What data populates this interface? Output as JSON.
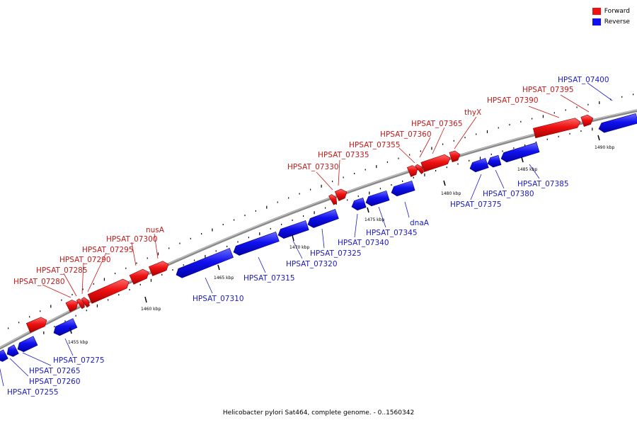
{
  "legend": {
    "forward_label": "Forward",
    "reverse_label": "Reverse",
    "forward_color": "#ee1111",
    "reverse_color": "#1111ee"
  },
  "caption": "Helicobacter pylori Sat464, complete genome. - 0..1560342",
  "ticks": [
    "1455 kbp",
    "1460 kbp",
    "1465 kbp",
    "1470 kbp",
    "1475 kbp",
    "1480 kbp",
    "1485 kbp",
    "1490 kbp"
  ],
  "forward_labels": [
    "HPSAT_07280",
    "HPSAT_07285",
    "HPSAT_07290",
    "HPSAT_07295",
    "HPSAT_07300",
    "nusA",
    "HPSAT_07330",
    "HPSAT_07335",
    "HPSAT_07355",
    "HPSAT_07360",
    "HPSAT_07365",
    "thyX",
    "HPSAT_07390",
    "HPSAT_07395"
  ],
  "reverse_labels": [
    "HPSAT_07255",
    "HPSAT_07260",
    "HPSAT_07265",
    "HPSAT_07275",
    "HPSAT_07310",
    "HPSAT_07315",
    "HPSAT_07320",
    "HPSAT_07325",
    "HPSAT_07340",
    "HPSAT_07345",
    "dnaA",
    "HPSAT_07375",
    "HPSAT_07380",
    "HPSAT_07385",
    "HPSAT_07400"
  ]
}
